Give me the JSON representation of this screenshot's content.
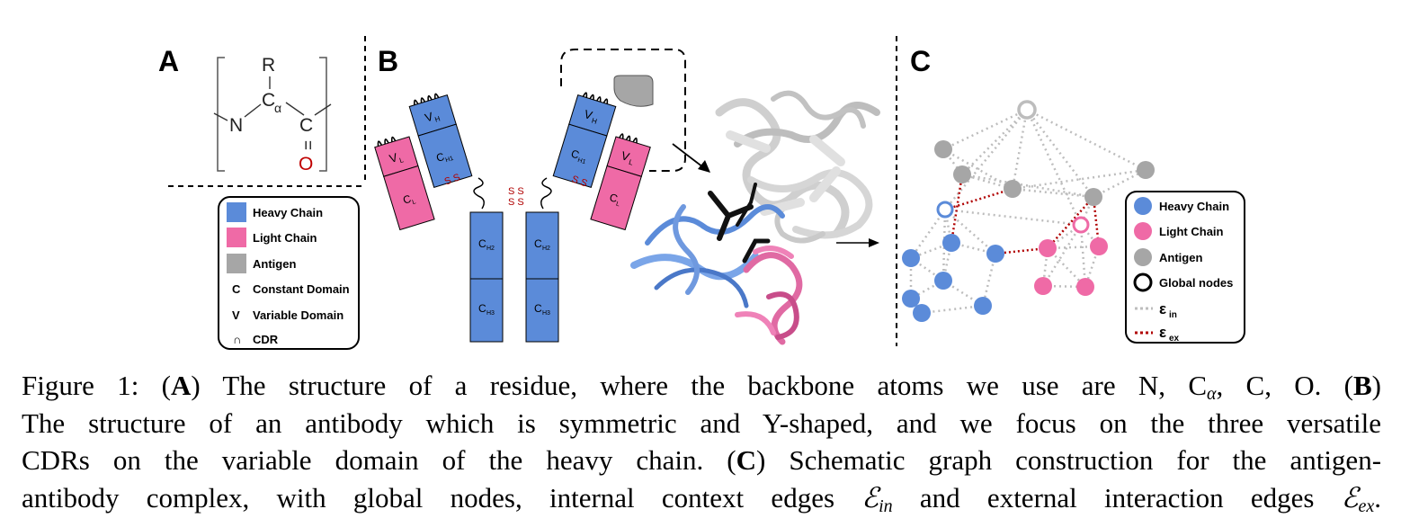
{
  "panels": {
    "a": {
      "letter": "A",
      "atoms": {
        "r": "R",
        "n": "N",
        "ca": "C",
        "ca_sub": "α",
        "c": "C",
        "dbl": "=",
        "o": "O"
      }
    },
    "b": {
      "letter": "B",
      "domains": {
        "vl": "V",
        "vl_sub": "L",
        "cl": "C",
        "cl_sub": "L",
        "vh": "V",
        "vh_sub": "H",
        "ch1": "C",
        "ch1_sub": "H1",
        "ch2": "C",
        "ch2_sub": "H2",
        "ch3": "C",
        "ch3_sub": "H3"
      },
      "disulfide": "S S"
    },
    "c": {
      "letter": "C"
    }
  },
  "legend_b": {
    "items": [
      {
        "label": "Heavy Chain",
        "color": "#5b8bd9"
      },
      {
        "label": "Light Chain",
        "color": "#ef6aa6"
      },
      {
        "label": "Antigen",
        "color": "#a6a6a6"
      },
      {
        "symbol": "C",
        "label": "Constant Domain"
      },
      {
        "symbol": "V",
        "label": "Variable Domain"
      },
      {
        "symbol": "∩",
        "label": "CDR"
      }
    ]
  },
  "legend_c": {
    "items": [
      {
        "label": "Heavy Chain",
        "color": "#5b8bd9"
      },
      {
        "label": "Light Chain",
        "color": "#ef6aa6"
      },
      {
        "label": "Antigen",
        "color": "#a6a6a6"
      },
      {
        "label": "Global nodes"
      },
      {
        "label": "ε",
        "sub": "in",
        "color": "#bdbdbd"
      },
      {
        "label": "ε",
        "sub": "ex",
        "color": "#b00000"
      }
    ]
  },
  "colors": {
    "heavy": "#5b8bd9",
    "light": "#ef6aa6",
    "antigen": "#a6a6a6",
    "internal_edge": "#bdbdbd",
    "external_edge": "#b00000",
    "oxygen": "#c00000"
  },
  "caption": {
    "fig_label": "Figure 1:",
    "a_letter": "A",
    "a_text": "The structure of a residue, where the backbone atoms we use are N, C",
    "a_sub": "α",
    "a_end": ", C, O.",
    "b_letter": "B",
    "line2": "The structure of an antibody which is symmetric and Y-shaped, and we focus on the three versatile",
    "line3_start": "CDRs on the variable domain of the heavy chain.",
    "c_letter": "C",
    "line3_end": "Schematic graph construction for the antigen-",
    "line4_start": "antibody complex, with global nodes, internal context edges",
    "e_symbol": "ℰ",
    "sub_in": "in",
    "line4_mid": "and external interaction edges",
    "sub_ex": "ex",
    "line4_end": "."
  }
}
